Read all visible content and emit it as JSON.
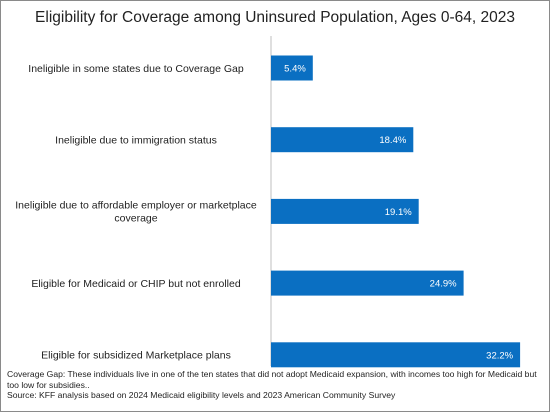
{
  "chart_data": {
    "type": "bar",
    "orientation": "horizontal",
    "title": "Eligibility for Coverage among Uninsured Population, Ages 0-64, 2023",
    "categories": [
      [
        "Ineligible in some states due to Coverage Gap"
      ],
      [
        "Ineligible due to immigration status"
      ],
      [
        "Ineligible due to affordable employer or marketplace",
        "coverage"
      ],
      [
        "Eligible for Medicaid or CHIP but not enrolled"
      ],
      [
        "Eligible for subsidized Marketplace plans"
      ]
    ],
    "values": [
      5.4,
      18.4,
      19.1,
      24.9,
      32.2
    ],
    "value_labels": [
      "5.4%",
      "18.4%",
      "19.1%",
      "24.9%",
      "32.2%"
    ],
    "xlabel": "",
    "ylabel": "",
    "xlim": [
      0,
      34
    ],
    "bar_color": "#0a6fc2",
    "grid": false,
    "legend": "none"
  },
  "notes": {
    "coverage_gap": "Coverage Gap: These individuals live in one of the ten states that did not adopt Medicaid expansion, with incomes too high for Medicaid but too low for subsidies..",
    "source": "Source: KFF analysis based on 2024 Medicaid eligibility levels and 2023 American Community Survey"
  }
}
